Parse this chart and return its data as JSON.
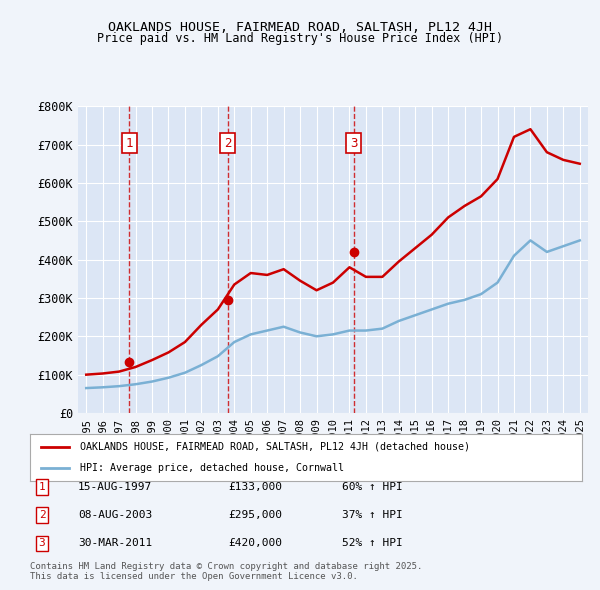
{
  "title": "OAKLANDS HOUSE, FAIRMEAD ROAD, SALTASH, PL12 4JH",
  "subtitle": "Price paid vs. HM Land Registry's House Price Index (HPI)",
  "ylabel": "",
  "background_color": "#f0f4fa",
  "plot_bg_color": "#dce6f5",
  "legend_line1": "OAKLANDS HOUSE, FAIRMEAD ROAD, SALTASH, PL12 4JH (detached house)",
  "legend_line2": "HPI: Average price, detached house, Cornwall",
  "footer": "Contains HM Land Registry data © Crown copyright and database right 2025.\nThis data is licensed under the Open Government Licence v3.0.",
  "sale_points": [
    {
      "num": 1,
      "date": "15-AUG-1997",
      "price": 133000,
      "year": 1997.62,
      "label": "60% ↑ HPI"
    },
    {
      "num": 2,
      "date": "08-AUG-2003",
      "price": 295000,
      "year": 2003.6,
      "label": "37% ↑ HPI"
    },
    {
      "num": 3,
      "date": "30-MAR-2011",
      "price": 420000,
      "year": 2011.25,
      "label": "52% ↑ HPI"
    }
  ],
  "hpi_years": [
    1995,
    1996,
    1997,
    1998,
    1999,
    2000,
    2001,
    2002,
    2003,
    2004,
    2005,
    2006,
    2007,
    2008,
    2009,
    2010,
    2011,
    2012,
    2013,
    2014,
    2015,
    2016,
    2017,
    2018,
    2019,
    2020,
    2021,
    2022,
    2023,
    2024,
    2025
  ],
  "hpi_values": [
    65000,
    67000,
    70000,
    75000,
    82000,
    92000,
    105000,
    125000,
    148000,
    185000,
    205000,
    215000,
    225000,
    210000,
    200000,
    205000,
    215000,
    215000,
    220000,
    240000,
    255000,
    270000,
    285000,
    295000,
    310000,
    340000,
    410000,
    450000,
    420000,
    435000,
    450000
  ],
  "red_years": [
    1995,
    1996,
    1997,
    1998,
    1999,
    2000,
    2001,
    2002,
    2003,
    2004,
    2005,
    2006,
    2007,
    2008,
    2009,
    2010,
    2011,
    2012,
    2013,
    2014,
    2015,
    2016,
    2017,
    2018,
    2019,
    2020,
    2021,
    2022,
    2023,
    2024,
    2025
  ],
  "red_values": [
    100000,
    103000,
    108000,
    120000,
    138000,
    158000,
    185000,
    230000,
    270000,
    335000,
    365000,
    360000,
    375000,
    345000,
    320000,
    340000,
    380000,
    355000,
    355000,
    395000,
    430000,
    465000,
    510000,
    540000,
    565000,
    610000,
    720000,
    740000,
    680000,
    660000,
    650000
  ],
  "ylim": [
    0,
    800000
  ],
  "yticks": [
    0,
    100000,
    200000,
    300000,
    400000,
    500000,
    600000,
    700000,
    800000
  ],
  "ytick_labels": [
    "£0",
    "£100K",
    "£200K",
    "£300K",
    "£400K",
    "£500K",
    "£600K",
    "£700K",
    "£800K"
  ],
  "xlim": [
    1994.5,
    2025.5
  ],
  "xticks": [
    1995,
    1996,
    1997,
    1998,
    1999,
    2000,
    2001,
    2002,
    2003,
    2004,
    2005,
    2006,
    2007,
    2008,
    2009,
    2010,
    2011,
    2012,
    2013,
    2014,
    2015,
    2016,
    2017,
    2018,
    2019,
    2020,
    2021,
    2022,
    2023,
    2024,
    2025
  ],
  "red_color": "#cc0000",
  "blue_color": "#7ab0d4",
  "vline_color": "#cc0000",
  "grid_color": "#ffffff",
  "number_box_color": "#cc0000"
}
